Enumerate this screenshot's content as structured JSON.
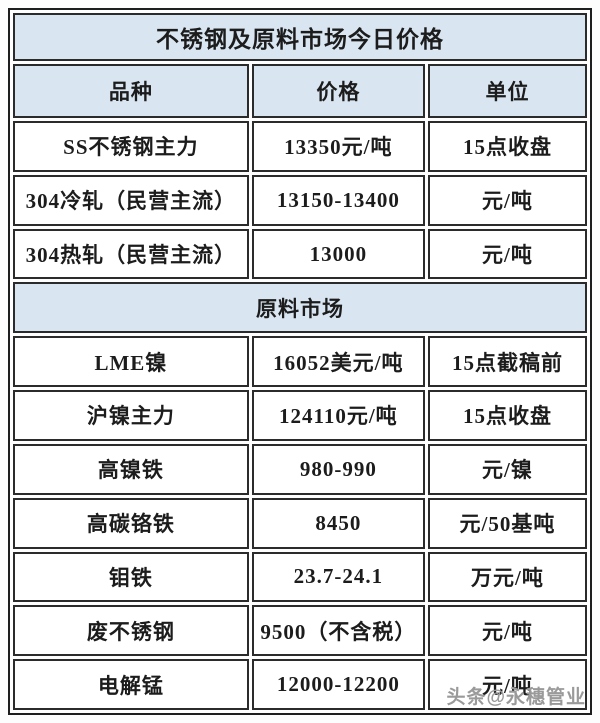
{
  "table": {
    "title": "不锈钢及原料市场今日价格",
    "columns": [
      "品种",
      "价格",
      "单位"
    ],
    "rows": [
      {
        "kind": "data",
        "name": "SS不锈钢主力",
        "price": "13350元/吨",
        "unit": "15点收盘"
      },
      {
        "kind": "data",
        "name": "304冷轧（民营主流）",
        "price": "13150-13400",
        "unit": "元/吨"
      },
      {
        "kind": "data",
        "name": "304热轧（民营主流）",
        "price": "13000",
        "unit": "元/吨"
      },
      {
        "kind": "section",
        "name": "原料市场"
      },
      {
        "kind": "data",
        "name": "LME镍",
        "price": "16052美元/吨",
        "unit": "15点截稿前"
      },
      {
        "kind": "data",
        "name": "沪镍主力",
        "price": "124110元/吨",
        "unit": "15点收盘"
      },
      {
        "kind": "data",
        "name": "高镍铁",
        "price": "980-990",
        "unit": "元/镍"
      },
      {
        "kind": "data",
        "name": "高碳铬铁",
        "price": "8450",
        "unit": "元/50基吨"
      },
      {
        "kind": "data",
        "name": "钼铁",
        "price": "23.7-24.1",
        "unit": "万元/吨"
      },
      {
        "kind": "data",
        "name": "废不锈钢",
        "price": "9500（不含税）",
        "unit": "元/吨"
      },
      {
        "kind": "data",
        "name": "电解锰",
        "price": "12000-12200",
        "unit": "元/吨"
      }
    ]
  },
  "watermark": "头条@永穗管业",
  "colors": {
    "band_blue": "#d9e6f2",
    "border": "#2b2b2b",
    "text": "#1c1c1c",
    "watermark_gray": "#9a9a9a"
  }
}
